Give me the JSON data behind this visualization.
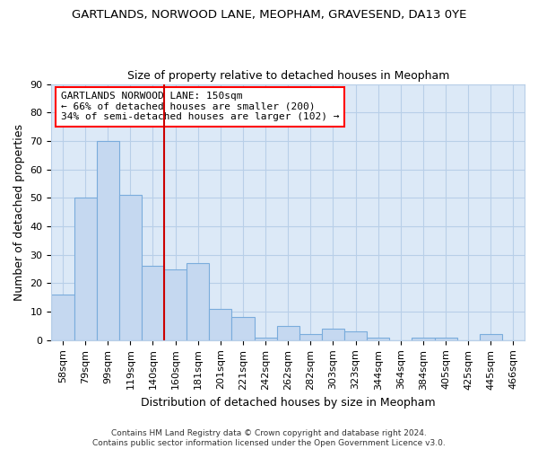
{
  "title": "GARTLANDS, NORWOOD LANE, MEOPHAM, GRAVESEND, DA13 0YE",
  "subtitle": "Size of property relative to detached houses in Meopham",
  "xlabel": "Distribution of detached houses by size in Meopham",
  "ylabel": "Number of detached properties",
  "categories": [
    "58sqm",
    "79sqm",
    "99sqm",
    "119sqm",
    "140sqm",
    "160sqm",
    "181sqm",
    "201sqm",
    "221sqm",
    "242sqm",
    "262sqm",
    "282sqm",
    "303sqm",
    "323sqm",
    "344sqm",
    "364sqm",
    "384sqm",
    "405sqm",
    "425sqm",
    "445sqm",
    "466sqm"
  ],
  "values": [
    16,
    50,
    70,
    51,
    26,
    25,
    27,
    11,
    8,
    1,
    5,
    2,
    4,
    3,
    1,
    0,
    1,
    1,
    0,
    2,
    0
  ],
  "bar_color": "#c5d8f0",
  "bar_edge_color": "#7aacdc",
  "vline_color": "#cc0000",
  "vline_pos": 4.5,
  "ylim": [
    0,
    90
  ],
  "yticks": [
    0,
    10,
    20,
    30,
    40,
    50,
    60,
    70,
    80,
    90
  ],
  "annotation_box_text": "GARTLANDS NORWOOD LANE: 150sqm\n← 66% of detached houses are smaller (200)\n34% of semi-detached houses are larger (102) →",
  "footnote": "Contains HM Land Registry data © Crown copyright and database right 2024.\nContains public sector information licensed under the Open Government Licence v3.0.",
  "fig_background": "#ffffff",
  "plot_background": "#dce9f7",
  "grid_color": "#b8cfe8",
  "title_fontsize": 9.5,
  "subtitle_fontsize": 9,
  "ylabel_fontsize": 9,
  "xlabel_fontsize": 9
}
